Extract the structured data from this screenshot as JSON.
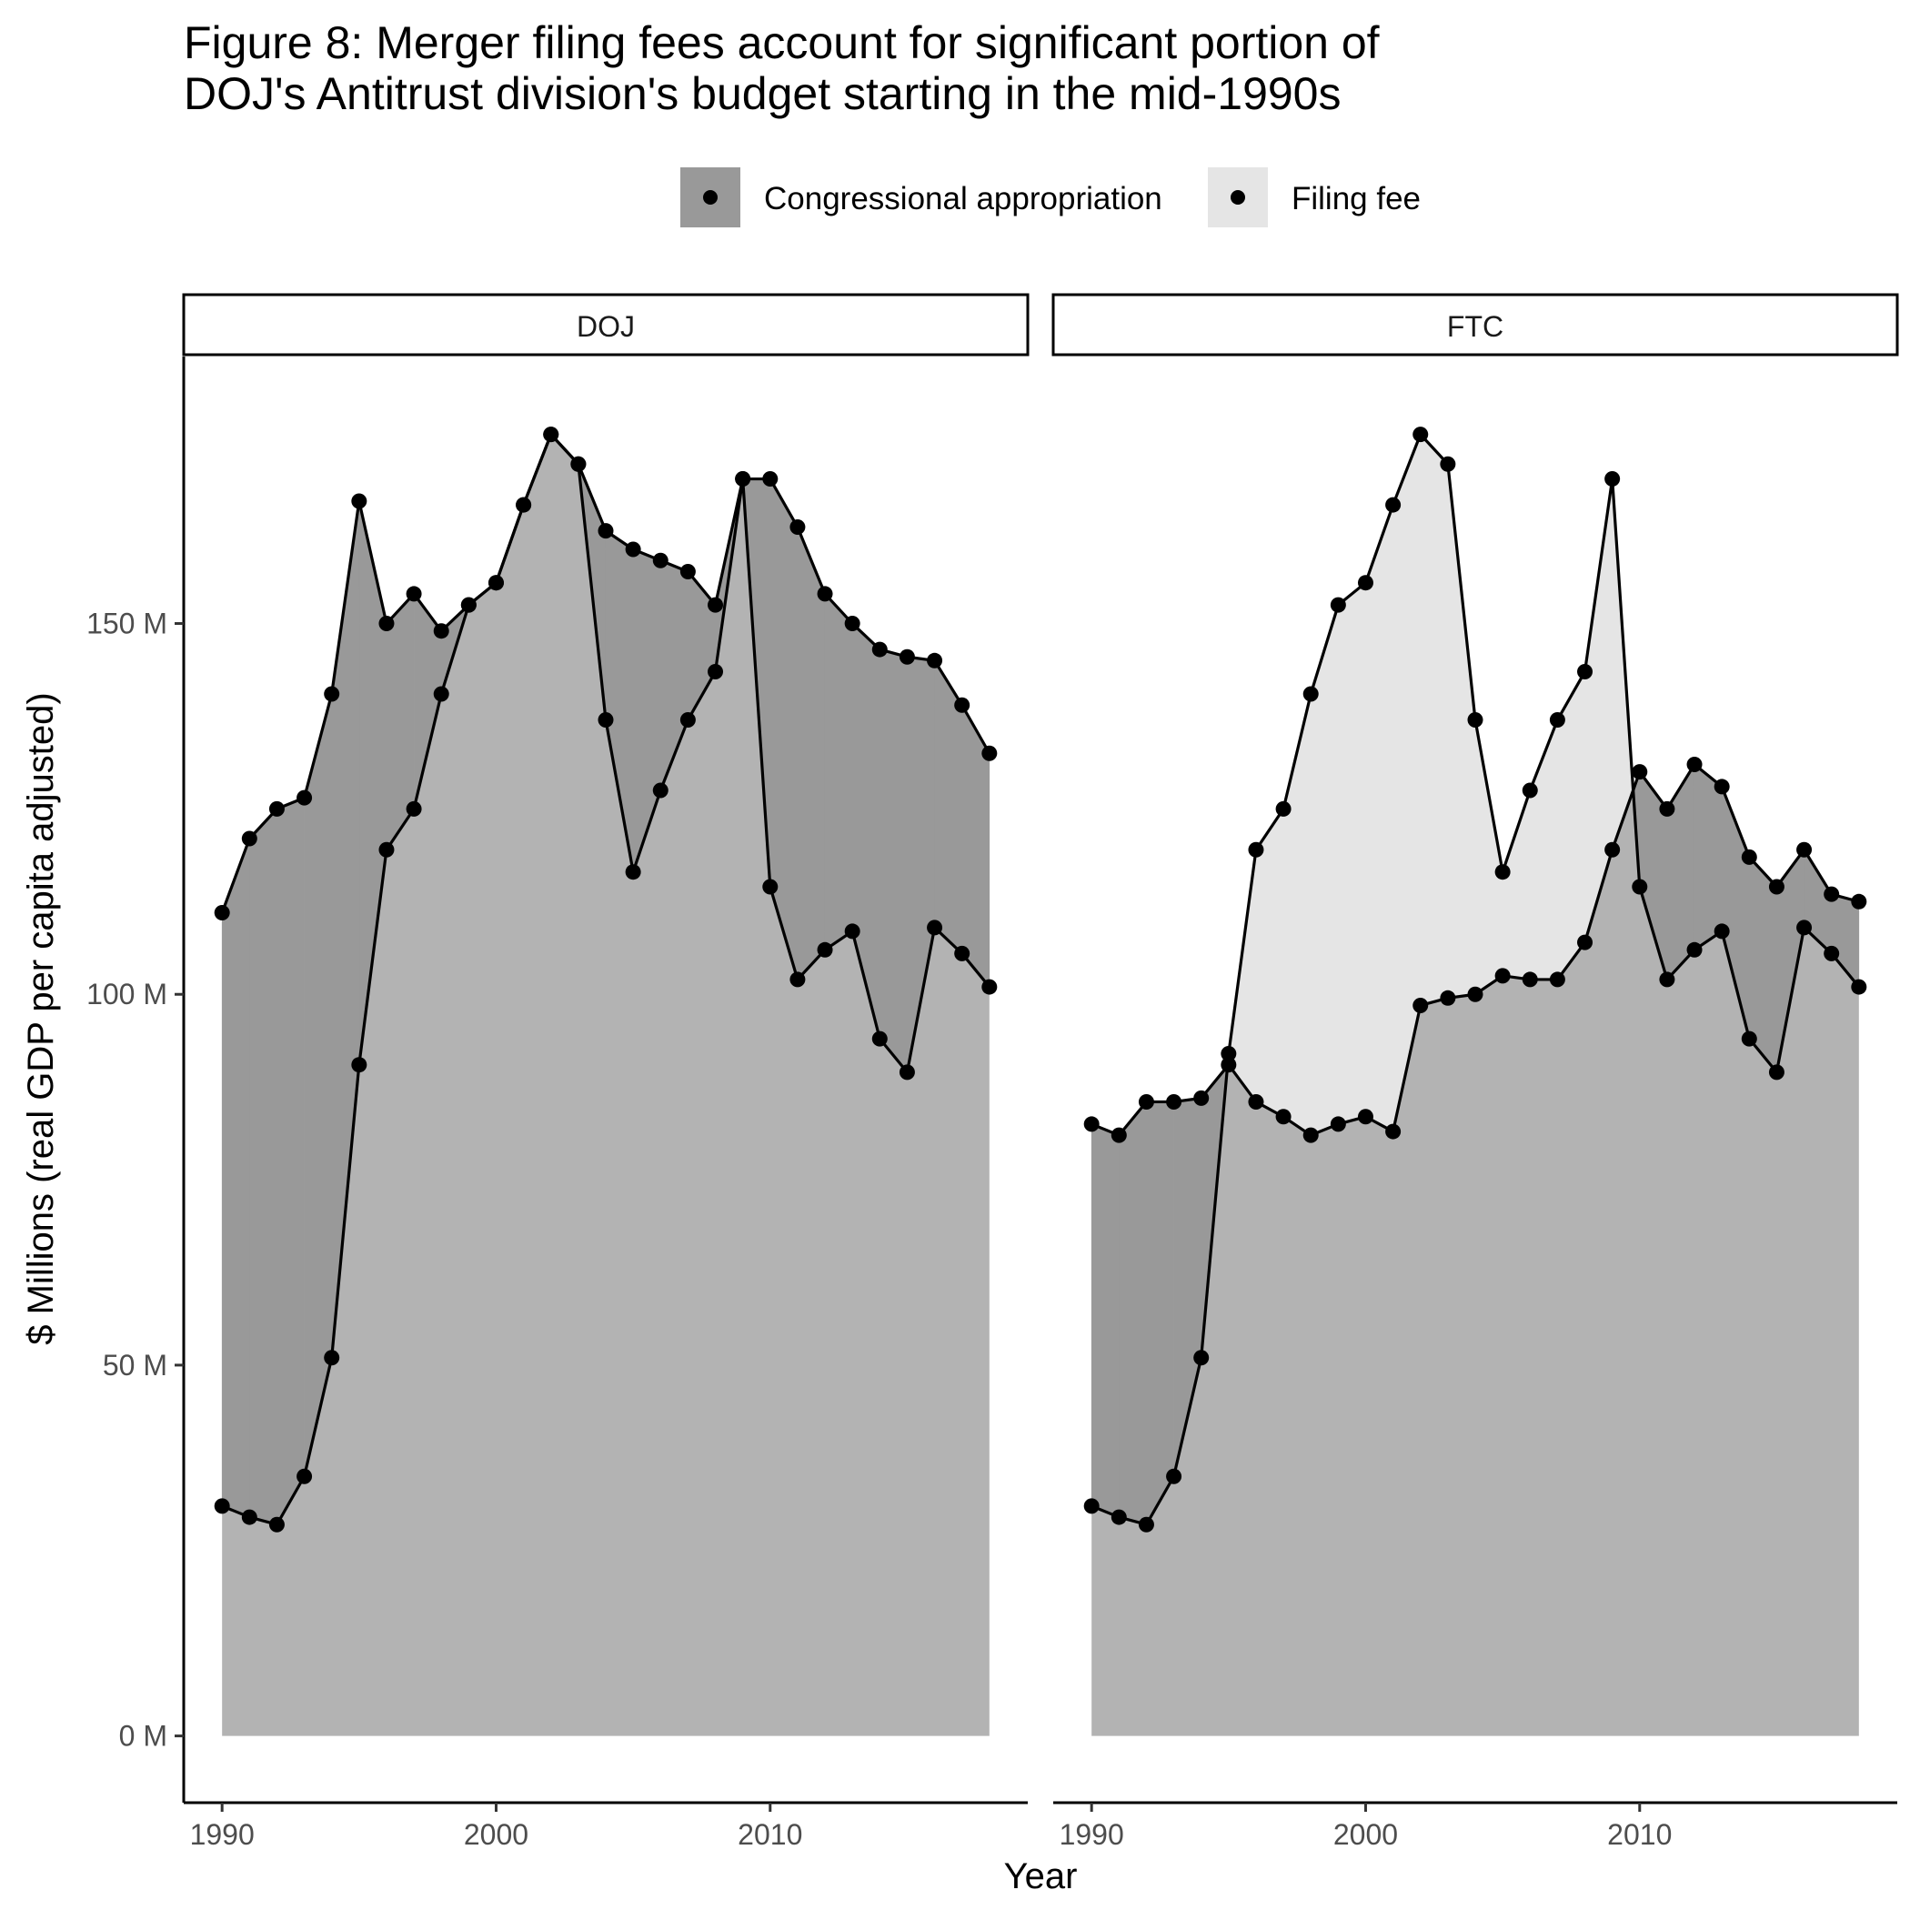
{
  "title_lines": [
    "Figure 8: Merger filing fees account for significant portion of",
    "DOJ's Antitrust division's budget starting in the mid-1990s"
  ],
  "chart_data": {
    "type": "area",
    "xlabel": "Year",
    "ylabel": "$ Millions (real GDP per capita adjusted)",
    "xlim": [
      1988.6,
      2019.4
    ],
    "ylim": [
      -9,
      186
    ],
    "x_ticks": [
      1990,
      2000,
      2010
    ],
    "y_ticks": [
      0,
      50,
      100,
      150
    ],
    "y_tick_labels": [
      "0 M",
      "50 M",
      "100 M",
      "150 M"
    ],
    "grid": false,
    "legend_position": "top",
    "legend": [
      {
        "label": "Congressional appropriation",
        "fill": "#999999"
      },
      {
        "label": "Filing fee",
        "fill": "#e5e5e5"
      }
    ],
    "x": [
      1990,
      1991,
      1992,
      1993,
      1994,
      1995,
      1996,
      1997,
      1998,
      1999,
      2000,
      2001,
      2002,
      2003,
      2004,
      2005,
      2006,
      2007,
      2008,
      2009,
      2010,
      2011,
      2012,
      2013,
      2014,
      2015,
      2016,
      2017,
      2018
    ],
    "panels": [
      {
        "name": "DOJ",
        "series": [
          {
            "name": "Congressional appropriation",
            "values": [
              111,
              121,
              125,
              126.5,
              140.5,
              166.5,
              150,
              154,
              149,
              152.5,
              155.5,
              166,
              175.5,
              171.5,
              162.5,
              160,
              158.5,
              157,
              152.5,
              169.5,
              169.5,
              163,
              154,
              150,
              146.5,
              145.5,
              145,
              139,
              132.5
            ]
          },
          {
            "name": "Filing fee",
            "values": [
              31,
              29.5,
              28.5,
              35,
              51,
              90.5,
              119.5,
              125,
              140.5,
              152.5,
              155.5,
              166,
              175.5,
              171.5,
              137,
              116.5,
              127.5,
              137,
              143.5,
              169.5,
              114.5,
              102,
              106,
              108.5,
              94,
              89.5,
              109,
              105.5,
              101
            ]
          }
        ]
      },
      {
        "name": "FTC",
        "series": [
          {
            "name": "Congressional appropriation",
            "values": [
              82.5,
              81,
              85.5,
              85.5,
              86,
              90.5,
              85.5,
              83.5,
              81,
              82.5,
              83.5,
              81.5,
              98.5,
              99.5,
              100,
              102.5,
              102,
              102,
              107,
              119.5,
              130,
              125,
              131,
              128,
              118.5,
              114.5,
              119.5,
              113.5,
              112.5
            ]
          },
          {
            "name": "Filing fee",
            "values": [
              31,
              29.5,
              28.5,
              35,
              51,
              92,
              119.5,
              125,
              140.5,
              152.5,
              155.5,
              166,
              175.5,
              171.5,
              137,
              116.5,
              127.5,
              137,
              143.5,
              169.5,
              114.5,
              102,
              106,
              108.5,
              94,
              89.5,
              109,
              105.5,
              101
            ]
          }
        ]
      }
    ]
  }
}
